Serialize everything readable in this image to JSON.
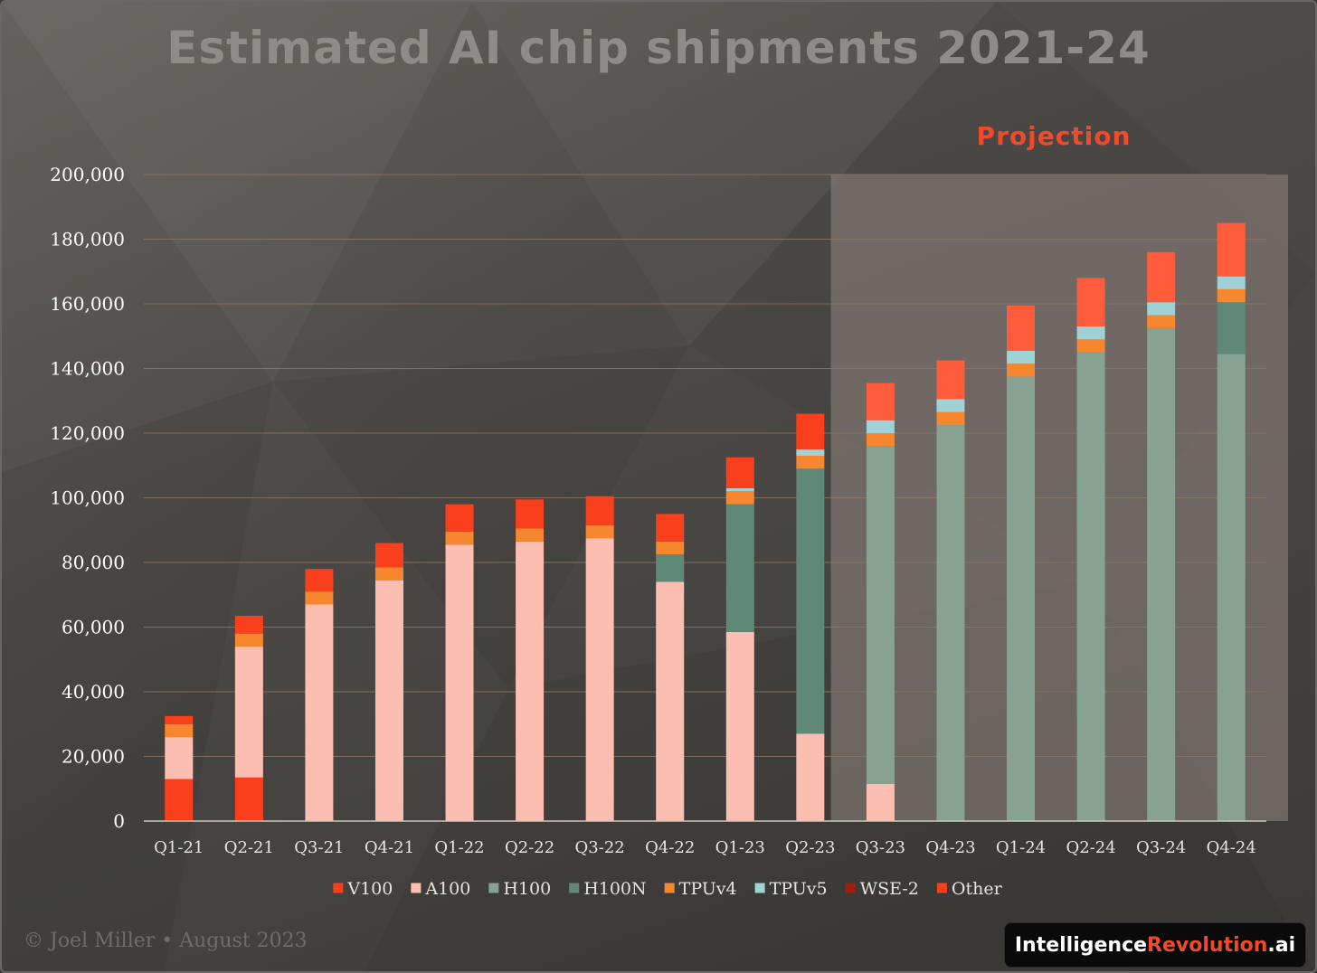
{
  "title": "Estimated AI chip shipments 2021-24",
  "projection_label": "Projection",
  "credit": "© Joel Miller • August 2023",
  "brand": {
    "part1": "Intelligence",
    "part2": "Revolution",
    "part3": ".ai"
  },
  "colors": {
    "V100": "#fa3f1c",
    "A100": "#fdbeb2",
    "H100": "#87a293",
    "H100N": "#5f8877",
    "TPUv4": "#f6872f",
    "TPUv5": "#9fd1d5",
    "WSE-2": "#a01d10",
    "Other": "#fa3f1c",
    "Other_proj": "#ff5c3c",
    "projection_bg": "#8a807c",
    "grid": "#8a7666"
  },
  "chart_data": {
    "type": "bar",
    "stacked": true,
    "title": "Estimated AI chip shipments 2021-24",
    "ylim": [
      0,
      200000
    ],
    "yticks": [
      0,
      20000,
      40000,
      60000,
      80000,
      100000,
      120000,
      140000,
      160000,
      180000,
      200000
    ],
    "ytick_labels": [
      "0",
      "20,000",
      "40,000",
      "60,000",
      "80,000",
      "100,000",
      "120,000",
      "140,000",
      "160,000",
      "180,000",
      "200,000"
    ],
    "grid": true,
    "legend_position": "bottom",
    "projection_start_index": 10,
    "categories": [
      "Q1-21",
      "Q2-21",
      "Q3-21",
      "Q4-21",
      "Q1-22",
      "Q2-22",
      "Q3-22",
      "Q4-22",
      "Q1-23",
      "Q2-23",
      "Q3-23",
      "Q4-23",
      "Q1-24",
      "Q2-24",
      "Q3-24",
      "Q4-24"
    ],
    "series": [
      {
        "name": "V100",
        "values": [
          13000,
          13500,
          0,
          0,
          0,
          0,
          0,
          0,
          0,
          0,
          0,
          0,
          0,
          0,
          0,
          0
        ]
      },
      {
        "name": "A100",
        "values": [
          13000,
          40500,
          67000,
          74500,
          85500,
          86500,
          87500,
          74000,
          58500,
          27000,
          11500,
          0,
          0,
          0,
          0,
          0
        ]
      },
      {
        "name": "H100",
        "values": [
          0,
          0,
          0,
          0,
          0,
          0,
          0,
          0,
          0,
          0,
          104500,
          122500,
          137500,
          145000,
          152500,
          144500
        ]
      },
      {
        "name": "H100N",
        "values": [
          0,
          0,
          0,
          0,
          0,
          0,
          0,
          8500,
          39500,
          82000,
          0,
          0,
          0,
          0,
          0,
          16000
        ]
      },
      {
        "name": "TPUv4",
        "values": [
          4000,
          4000,
          4000,
          4000,
          4000,
          4000,
          4000,
          4000,
          4000,
          4000,
          4000,
          4000,
          4000,
          4000,
          4000,
          4000
        ]
      },
      {
        "name": "TPUv5",
        "values": [
          0,
          0,
          0,
          0,
          0,
          0,
          0,
          0,
          1000,
          2000,
          4000,
          4000,
          4000,
          4000,
          4000,
          4000
        ]
      },
      {
        "name": "WSE-2",
        "values": [
          0,
          0,
          0,
          0,
          0,
          0,
          0,
          0,
          0,
          0,
          0,
          0,
          0,
          0,
          0,
          0
        ]
      },
      {
        "name": "Other",
        "values": [
          2500,
          5500,
          7000,
          7500,
          8500,
          9000,
          9000,
          8500,
          9500,
          11000,
          11500,
          12000,
          14000,
          15000,
          15500,
          16500
        ]
      }
    ]
  }
}
